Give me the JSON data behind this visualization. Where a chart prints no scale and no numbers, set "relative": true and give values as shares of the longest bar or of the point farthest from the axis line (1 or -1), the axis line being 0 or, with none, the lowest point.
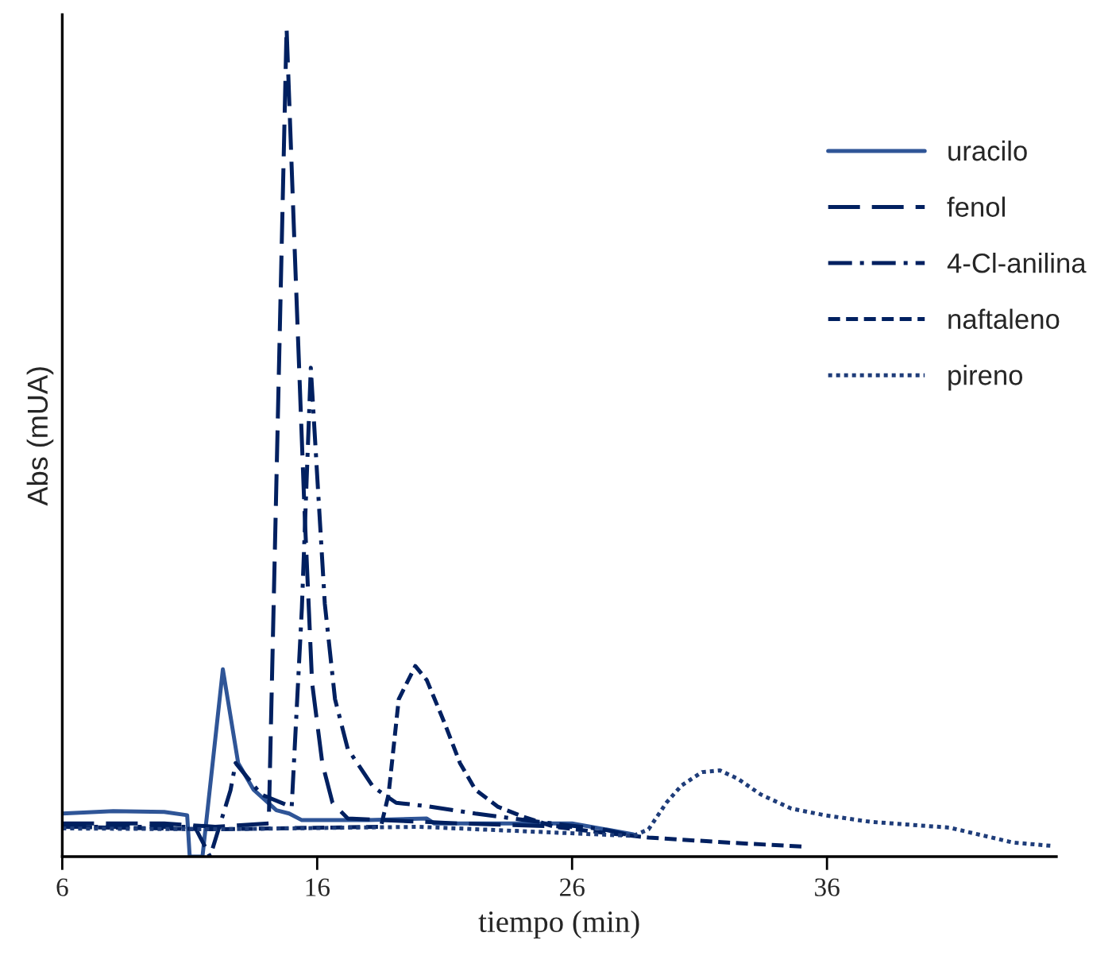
{
  "chart_data": {
    "type": "line",
    "relative": true,
    "xlabel": "tiempo (min)",
    "ylabel": "Abs (mUA)",
    "xlim": [
      6,
      45
    ],
    "xticks": [
      6,
      16,
      26,
      36
    ],
    "grid": false,
    "legend": "top right",
    "marker": "none",
    "series": [
      {
        "name": "uracilo",
        "color": "#2f5597",
        "line_style": "solid",
        "x": [
          6,
          8,
          10,
          10.9,
          11.0,
          11.5,
          12.3,
          12.9,
          13.5,
          14.4,
          14.9,
          15.4,
          18,
          20.3,
          20.6,
          26,
          28.4
        ],
        "values": [
          0.052,
          0.055,
          0.054,
          0.05,
          0,
          0,
          0.226,
          0.113,
          0.081,
          0.056,
          0.052,
          0.044,
          0.044,
          0.046,
          0.04,
          0.04,
          0.027
        ]
      },
      {
        "name": "fenol",
        "color": "#002060",
        "line_style": "longdash",
        "x": [
          6,
          10,
          12,
          14.1,
          14.8,
          15.1,
          15.5,
          15.8,
          16.2,
          16.6,
          17.2,
          21.6,
          26
        ],
        "values": [
          0.04,
          0.04,
          0.036,
          0.04,
          1.0,
          0.747,
          0.42,
          0.21,
          0.113,
          0.065,
          0.046,
          0.04,
          0.036
        ]
      },
      {
        "name": "4-Cl-anilina",
        "color": "#002060",
        "line_style": "dashdot",
        "x": [
          6,
          11.2,
          11.8,
          12.6,
          12.8,
          13.8,
          15.0,
          15.4,
          15.75,
          16.0,
          16.3,
          16.7,
          17.2,
          18.2,
          19.1,
          20.3,
          22.2,
          24.7,
          27.2,
          28.4
        ],
        "values": [
          0.036,
          0.036,
          0.0,
          0.08,
          0.113,
          0.075,
          0.06,
          0.3,
          0.59,
          0.46,
          0.305,
          0.19,
          0.13,
          0.084,
          0.065,
          0.061,
          0.052,
          0.042,
          0.033,
          0.025
        ]
      },
      {
        "name": "naftaleno",
        "color": "#002060",
        "line_style": "dashed",
        "x": [
          6,
          12,
          18.5,
          18.8,
          19.2,
          19.85,
          20.3,
          21.0,
          21.6,
          22.2,
          23.1,
          24.1,
          25.3,
          27.2,
          29.0,
          32.1,
          35.1
        ],
        "values": [
          0.036,
          0.033,
          0.036,
          0.075,
          0.19,
          0.23,
          0.213,
          0.161,
          0.113,
          0.081,
          0.06,
          0.048,
          0.036,
          0.029,
          0.023,
          0.017,
          0.012
        ]
      },
      {
        "name": "pireno",
        "color": "#1f3d7a",
        "line_style": "dotted",
        "x": [
          6,
          12,
          20,
          28.4,
          29.0,
          29.7,
          30.3,
          31.1,
          31.8,
          32.5,
          33.4,
          34.6,
          35.9,
          37.7,
          40.8,
          43.3,
          44.8
        ],
        "values": [
          0.034,
          0.033,
          0.036,
          0.025,
          0.033,
          0.065,
          0.086,
          0.102,
          0.104,
          0.094,
          0.075,
          0.058,
          0.05,
          0.042,
          0.035,
          0.017,
          0.013
        ]
      }
    ]
  }
}
